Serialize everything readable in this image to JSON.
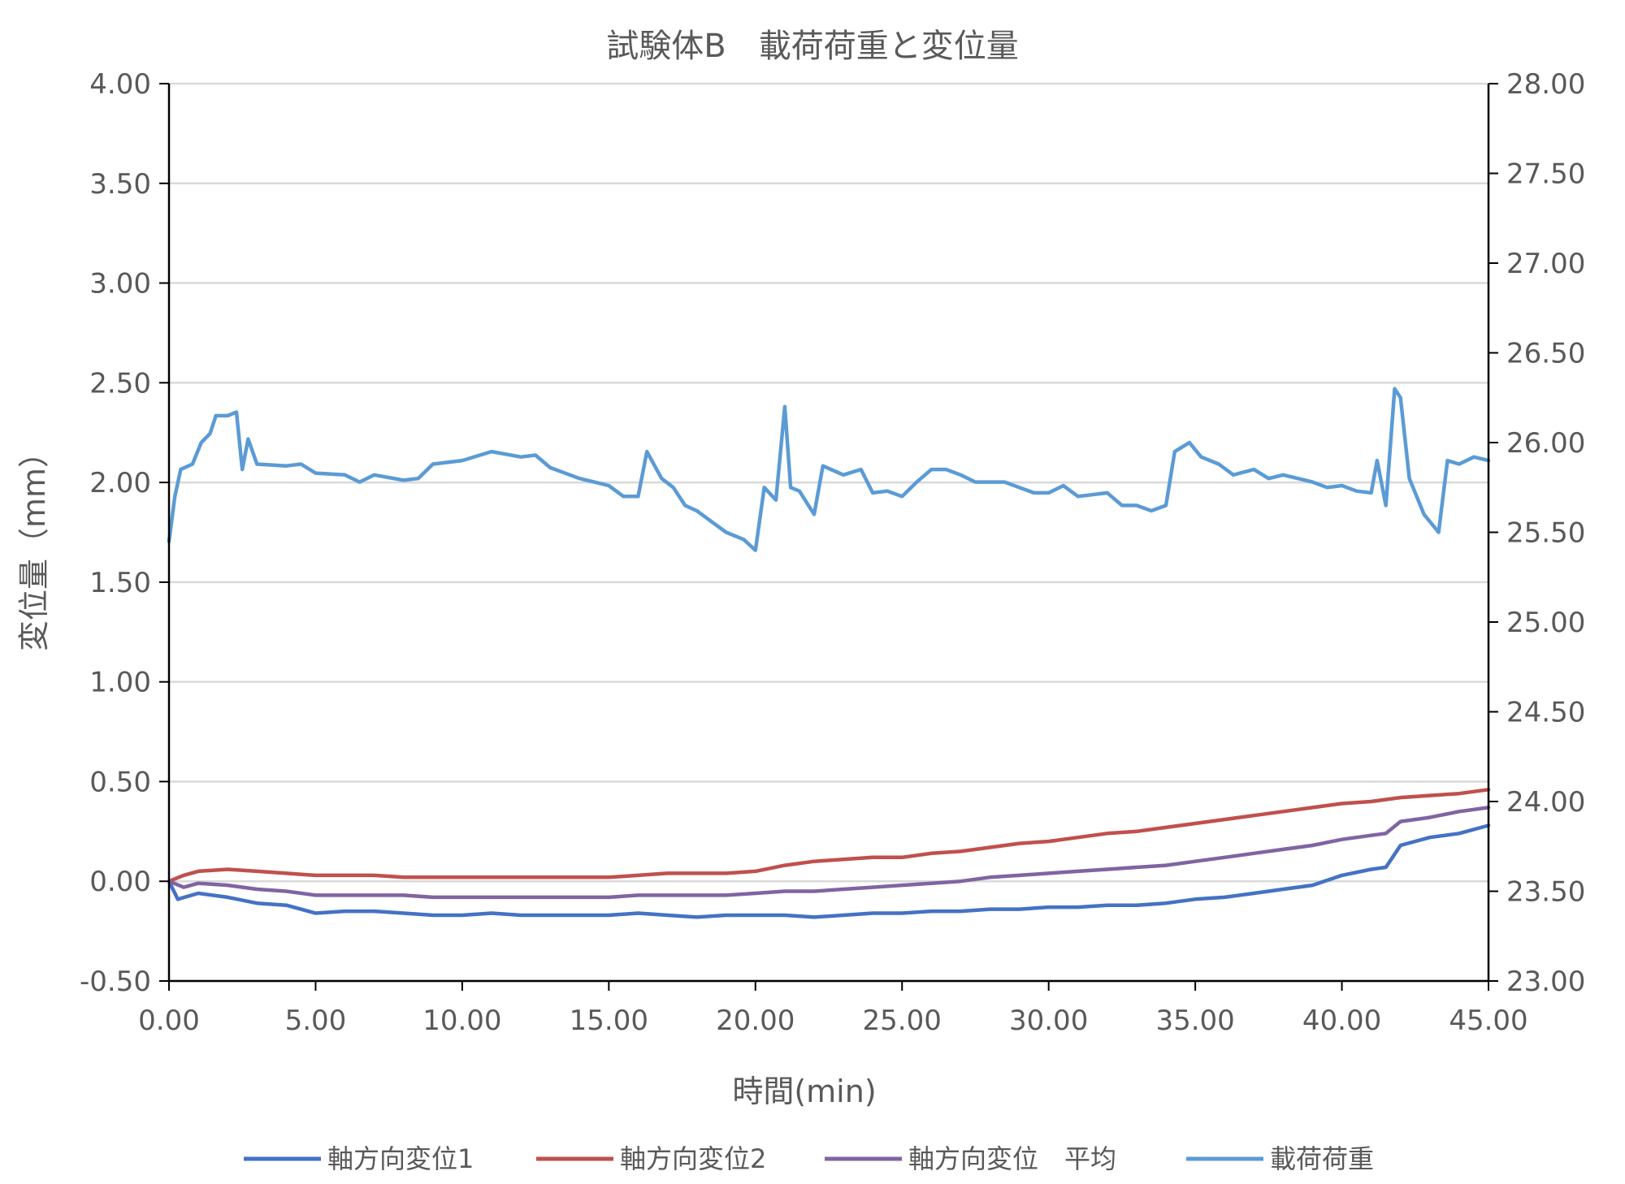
{
  "chart_data": {
    "type": "line",
    "title": "試験体B　載荷荷重と変位量",
    "xlabel": "時間(min)",
    "ylabel": "変位量（mm）",
    "y2label": "",
    "xlim": [
      0,
      45
    ],
    "ylim": [
      -0.5,
      4.0
    ],
    "y2lim": [
      23.0,
      28.0
    ],
    "x_ticks": [
      "0.00",
      "5.00",
      "10.00",
      "15.00",
      "20.00",
      "25.00",
      "30.00",
      "35.00",
      "40.00",
      "45.00"
    ],
    "y_ticks": [
      "-0.50",
      "0.00",
      "0.50",
      "1.00",
      "1.50",
      "2.00",
      "2.50",
      "3.00",
      "3.50",
      "4.00"
    ],
    "y2_ticks": [
      "23.00",
      "23.50",
      "24.00",
      "24.50",
      "25.00",
      "25.50",
      "26.00",
      "26.50",
      "27.00",
      "27.50",
      "28.00"
    ],
    "grid": true,
    "legend_position": "bottom",
    "series": [
      {
        "name": "軸方向変位1",
        "axis": "left",
        "color": "#4472C4",
        "points": [
          [
            0,
            0
          ],
          [
            0.3,
            -0.09
          ],
          [
            1,
            -0.06
          ],
          [
            2,
            -0.08
          ],
          [
            3,
            -0.11
          ],
          [
            4,
            -0.12
          ],
          [
            5,
            -0.16
          ],
          [
            6,
            -0.15
          ],
          [
            7,
            -0.15
          ],
          [
            8,
            -0.16
          ],
          [
            9,
            -0.17
          ],
          [
            10,
            -0.17
          ],
          [
            11,
            -0.16
          ],
          [
            12,
            -0.17
          ],
          [
            13,
            -0.17
          ],
          [
            14,
            -0.17
          ],
          [
            15,
            -0.17
          ],
          [
            16,
            -0.16
          ],
          [
            17,
            -0.17
          ],
          [
            18,
            -0.18
          ],
          [
            19,
            -0.17
          ],
          [
            20,
            -0.17
          ],
          [
            21,
            -0.17
          ],
          [
            22,
            -0.18
          ],
          [
            23,
            -0.17
          ],
          [
            24,
            -0.16
          ],
          [
            25,
            -0.16
          ],
          [
            26,
            -0.15
          ],
          [
            27,
            -0.15
          ],
          [
            28,
            -0.14
          ],
          [
            29,
            -0.14
          ],
          [
            30,
            -0.13
          ],
          [
            31,
            -0.13
          ],
          [
            32,
            -0.12
          ],
          [
            33,
            -0.12
          ],
          [
            34,
            -0.11
          ],
          [
            35,
            -0.09
          ],
          [
            36,
            -0.08
          ],
          [
            37,
            -0.06
          ],
          [
            38,
            -0.04
          ],
          [
            39,
            -0.02
          ],
          [
            40,
            0.03
          ],
          [
            41,
            0.06
          ],
          [
            41.5,
            0.07
          ],
          [
            42,
            0.18
          ],
          [
            43,
            0.22
          ],
          [
            44,
            0.24
          ],
          [
            45,
            0.28
          ]
        ]
      },
      {
        "name": "軸方向変位2",
        "axis": "left",
        "color": "#C0504D",
        "points": [
          [
            0,
            0
          ],
          [
            0.5,
            0.03
          ],
          [
            1,
            0.05
          ],
          [
            2,
            0.06
          ],
          [
            3,
            0.05
          ],
          [
            4,
            0.04
          ],
          [
            5,
            0.03
          ],
          [
            6,
            0.03
          ],
          [
            7,
            0.03
          ],
          [
            8,
            0.02
          ],
          [
            9,
            0.02
          ],
          [
            10,
            0.02
          ],
          [
            11,
            0.02
          ],
          [
            12,
            0.02
          ],
          [
            13,
            0.02
          ],
          [
            14,
            0.02
          ],
          [
            15,
            0.02
          ],
          [
            16,
            0.03
          ],
          [
            17,
            0.04
          ],
          [
            18,
            0.04
          ],
          [
            19,
            0.04
          ],
          [
            20,
            0.05
          ],
          [
            21,
            0.08
          ],
          [
            22,
            0.1
          ],
          [
            23,
            0.11
          ],
          [
            24,
            0.12
          ],
          [
            25,
            0.12
          ],
          [
            26,
            0.14
          ],
          [
            27,
            0.15
          ],
          [
            28,
            0.17
          ],
          [
            29,
            0.19
          ],
          [
            30,
            0.2
          ],
          [
            31,
            0.22
          ],
          [
            32,
            0.24
          ],
          [
            33,
            0.25
          ],
          [
            34,
            0.27
          ],
          [
            35,
            0.29
          ],
          [
            36,
            0.31
          ],
          [
            37,
            0.33
          ],
          [
            38,
            0.35
          ],
          [
            39,
            0.37
          ],
          [
            40,
            0.39
          ],
          [
            41,
            0.4
          ],
          [
            42,
            0.42
          ],
          [
            43,
            0.43
          ],
          [
            44,
            0.44
          ],
          [
            45,
            0.46
          ]
        ]
      },
      {
        "name": "軸方向変位　平均",
        "axis": "left",
        "color": "#8064A2",
        "points": [
          [
            0,
            0
          ],
          [
            0.5,
            -0.03
          ],
          [
            1,
            -0.01
          ],
          [
            2,
            -0.02
          ],
          [
            3,
            -0.04
          ],
          [
            4,
            -0.05
          ],
          [
            5,
            -0.07
          ],
          [
            6,
            -0.07
          ],
          [
            7,
            -0.07
          ],
          [
            8,
            -0.07
          ],
          [
            9,
            -0.08
          ],
          [
            10,
            -0.08
          ],
          [
            11,
            -0.08
          ],
          [
            12,
            -0.08
          ],
          [
            13,
            -0.08
          ],
          [
            14,
            -0.08
          ],
          [
            15,
            -0.08
          ],
          [
            16,
            -0.07
          ],
          [
            17,
            -0.07
          ],
          [
            18,
            -0.07
          ],
          [
            19,
            -0.07
          ],
          [
            20,
            -0.06
          ],
          [
            21,
            -0.05
          ],
          [
            22,
            -0.05
          ],
          [
            23,
            -0.04
          ],
          [
            24,
            -0.03
          ],
          [
            25,
            -0.02
          ],
          [
            26,
            -0.01
          ],
          [
            27,
            0
          ],
          [
            28,
            0.02
          ],
          [
            29,
            0.03
          ],
          [
            30,
            0.04
          ],
          [
            31,
            0.05
          ],
          [
            32,
            0.06
          ],
          [
            33,
            0.07
          ],
          [
            34,
            0.08
          ],
          [
            35,
            0.1
          ],
          [
            36,
            0.12
          ],
          [
            37,
            0.14
          ],
          [
            38,
            0.16
          ],
          [
            39,
            0.18
          ],
          [
            40,
            0.21
          ],
          [
            41,
            0.23
          ],
          [
            41.5,
            0.24
          ],
          [
            42,
            0.3
          ],
          [
            43,
            0.32
          ],
          [
            44,
            0.35
          ],
          [
            45,
            0.37
          ]
        ]
      },
      {
        "name": "載荷荷重",
        "axis": "right",
        "color": "#5B9BD5",
        "points": [
          [
            0,
            25.45
          ],
          [
            0.2,
            25.7
          ],
          [
            0.4,
            25.85
          ],
          [
            0.8,
            25.88
          ],
          [
            1.1,
            26.0
          ],
          [
            1.4,
            26.05
          ],
          [
            1.6,
            26.15
          ],
          [
            2,
            26.15
          ],
          [
            2.3,
            26.17
          ],
          [
            2.5,
            25.85
          ],
          [
            2.7,
            26.02
          ],
          [
            3,
            25.88
          ],
          [
            4,
            25.87
          ],
          [
            4.5,
            25.88
          ],
          [
            5,
            25.83
          ],
          [
            6,
            25.82
          ],
          [
            6.5,
            25.78
          ],
          [
            7,
            25.82
          ],
          [
            8,
            25.79
          ],
          [
            8.5,
            25.8
          ],
          [
            9,
            25.88
          ],
          [
            10,
            25.9
          ],
          [
            11,
            25.95
          ],
          [
            12,
            25.92
          ],
          [
            12.5,
            25.93
          ],
          [
            13,
            25.86
          ],
          [
            14,
            25.8
          ],
          [
            14.5,
            25.78
          ],
          [
            15,
            25.76
          ],
          [
            15.5,
            25.7
          ],
          [
            16,
            25.7
          ],
          [
            16.3,
            25.95
          ],
          [
            16.8,
            25.8
          ],
          [
            17.2,
            25.75
          ],
          [
            17.6,
            25.65
          ],
          [
            18,
            25.62
          ],
          [
            19,
            25.5
          ],
          [
            19.6,
            25.46
          ],
          [
            20,
            25.4
          ],
          [
            20.3,
            25.75
          ],
          [
            20.7,
            25.68
          ],
          [
            21,
            26.2
          ],
          [
            21.2,
            25.75
          ],
          [
            21.5,
            25.73
          ],
          [
            22,
            25.6
          ],
          [
            22.3,
            25.87
          ],
          [
            23,
            25.82
          ],
          [
            23.6,
            25.85
          ],
          [
            24,
            25.72
          ],
          [
            24.5,
            25.73
          ],
          [
            25,
            25.7
          ],
          [
            25.5,
            25.78
          ],
          [
            26,
            25.85
          ],
          [
            26.5,
            25.85
          ],
          [
            27,
            25.82
          ],
          [
            27.5,
            25.78
          ],
          [
            28,
            25.78
          ],
          [
            28.5,
            25.78
          ],
          [
            29,
            25.75
          ],
          [
            29.5,
            25.72
          ],
          [
            30,
            25.72
          ],
          [
            30.5,
            25.76
          ],
          [
            31,
            25.7
          ],
          [
            32,
            25.72
          ],
          [
            32.5,
            25.65
          ],
          [
            33,
            25.65
          ],
          [
            33.5,
            25.62
          ],
          [
            34,
            25.65
          ],
          [
            34.3,
            25.95
          ],
          [
            34.8,
            26.0
          ],
          [
            35.2,
            25.92
          ],
          [
            35.8,
            25.88
          ],
          [
            36.3,
            25.82
          ],
          [
            37,
            25.85
          ],
          [
            37.5,
            25.8
          ],
          [
            38,
            25.82
          ],
          [
            38.5,
            25.8
          ],
          [
            39,
            25.78
          ],
          [
            39.5,
            25.75
          ],
          [
            40,
            25.76
          ],
          [
            40.5,
            25.73
          ],
          [
            41,
            25.72
          ],
          [
            41.2,
            25.9
          ],
          [
            41.5,
            25.65
          ],
          [
            41.8,
            26.3
          ],
          [
            42,
            26.25
          ],
          [
            42.3,
            25.8
          ],
          [
            42.8,
            25.6
          ],
          [
            43.3,
            25.5
          ],
          [
            43.6,
            25.9
          ],
          [
            44,
            25.88
          ],
          [
            44.5,
            25.92
          ],
          [
            45,
            25.9
          ]
        ]
      }
    ]
  }
}
